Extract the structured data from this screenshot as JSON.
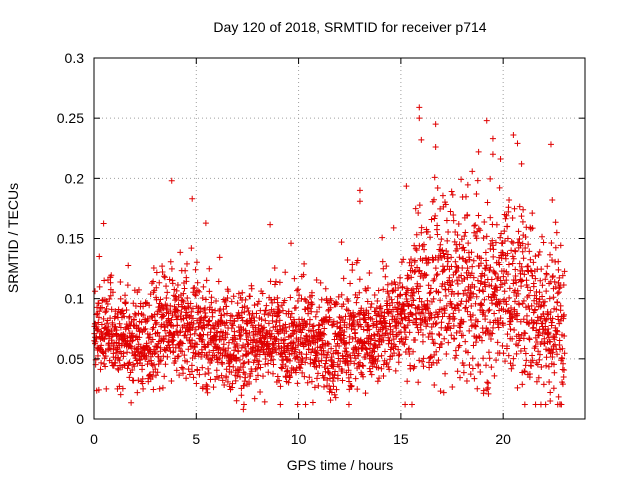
{
  "chart_data": {
    "type": "scatter",
    "title": "Day 120 of 2018, SRMTID for receiver p714",
    "xlabel": "GPS time / hours",
    "ylabel": "SRMTID / TECUs",
    "xlim": [
      0,
      24
    ],
    "ylim": [
      0,
      0.3
    ],
    "xticks": [
      0,
      5,
      10,
      15,
      20
    ],
    "yticks": [
      0,
      0.05,
      0.1,
      0.15,
      0.2,
      0.25,
      0.3
    ],
    "xtick_labels": [
      "0",
      "5",
      "10",
      "15",
      "20"
    ],
    "ytick_labels": [
      "0",
      "0.05",
      "0.1",
      "0.15",
      "0.2",
      "0.25",
      "0.3"
    ],
    "grid": true,
    "marker": "+",
    "color": "#e00000",
    "point_count_note": "approximately 3000 points spanning 0 to 23 hours",
    "baseline": [
      [
        0,
        0.07
      ],
      [
        1,
        0.075
      ],
      [
        2,
        0.063
      ],
      [
        3,
        0.068
      ],
      [
        4,
        0.078
      ],
      [
        5,
        0.074
      ],
      [
        6,
        0.066
      ],
      [
        7,
        0.06
      ],
      [
        8,
        0.068
      ],
      [
        9,
        0.07
      ],
      [
        10,
        0.066
      ],
      [
        11,
        0.062
      ],
      [
        12,
        0.063
      ],
      [
        13,
        0.068
      ],
      [
        14,
        0.072
      ],
      [
        15,
        0.085
      ],
      [
        16,
        0.105
      ],
      [
        17,
        0.1
      ],
      [
        18,
        0.105
      ],
      [
        19,
        0.1
      ],
      [
        20,
        0.11
      ],
      [
        21,
        0.1
      ],
      [
        22,
        0.085
      ],
      [
        23,
        0.075
      ]
    ],
    "notable_points": [
      {
        "x": 3.8,
        "y": 0.198
      },
      {
        "x": 4.8,
        "y": 0.183
      },
      {
        "x": 13.0,
        "y": 0.19
      },
      {
        "x": 13.0,
        "y": 0.181
      },
      {
        "x": 12.1,
        "y": 0.147
      },
      {
        "x": 15.9,
        "y": 0.259
      },
      {
        "x": 15.9,
        "y": 0.25
      },
      {
        "x": 16.0,
        "y": 0.232
      },
      {
        "x": 16.7,
        "y": 0.245
      },
      {
        "x": 16.7,
        "y": 0.226
      },
      {
        "x": 18.8,
        "y": 0.222
      },
      {
        "x": 19.5,
        "y": 0.233
      },
      {
        "x": 19.5,
        "y": 0.22
      },
      {
        "x": 20.5,
        "y": 0.236
      },
      {
        "x": 20.7,
        "y": 0.229
      },
      {
        "x": 20.9,
        "y": 0.212
      },
      {
        "x": 22.4,
        "y": 0.182
      },
      {
        "x": 7.3,
        "y": 0.008
      },
      {
        "x": 22.3,
        "y": 0.015
      },
      {
        "x": 22.3,
        "y": 0.022
      },
      {
        "x": 0.6,
        "y": 0.025
      },
      {
        "x": 2.4,
        "y": 0.025
      }
    ]
  }
}
